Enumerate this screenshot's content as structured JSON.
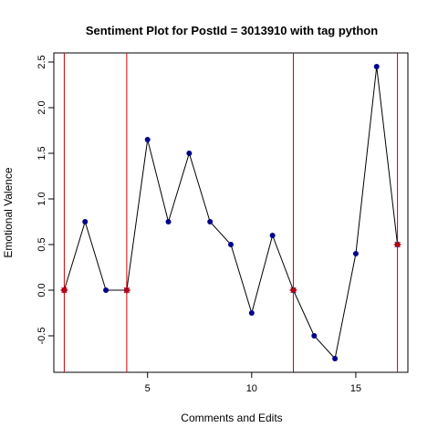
{
  "chart_data": {
    "type": "line",
    "title": "Sentiment Plot for PostId =  3013910  with tag  python",
    "xlabel": "Comments and Edits",
    "ylabel": "Emotional Valence",
    "xlim": [
      0.5,
      17.5
    ],
    "ylim": [
      -0.9,
      2.6
    ],
    "x_ticks": [
      5,
      10,
      15
    ],
    "y_ticks": [
      -0.5,
      0.0,
      0.5,
      1.0,
      1.5,
      2.0,
      2.5
    ],
    "x_tick_labels": [
      "5",
      "10",
      "15"
    ],
    "y_tick_labels": [
      "-0.5",
      "0.0",
      "0.5",
      "1.0",
      "1.5",
      "2.0",
      "2.5"
    ],
    "series": [
      {
        "x": [
          1,
          2,
          3,
          4,
          5,
          6,
          7,
          8,
          9,
          10,
          11,
          12,
          13,
          14,
          15,
          16,
          17
        ],
        "y": [
          0.0,
          0.75,
          0.0,
          0.0,
          1.65,
          0.75,
          1.5,
          0.75,
          0.5,
          -0.25,
          0.6,
          0.0,
          -0.5,
          -0.75,
          0.4,
          2.45,
          0.5
        ],
        "line_color": "#000000",
        "point_color": "#00008B"
      }
    ],
    "edit_markers": {
      "x": [
        1,
        4,
        12,
        17
      ],
      "y": [
        0.0,
        0.0,
        0.0,
        0.5
      ],
      "color": "#CC0000"
    },
    "vertical_lines": {
      "x": [
        1,
        4,
        12,
        17
      ],
      "color": "#CC0000"
    },
    "grid": false,
    "legend": "none"
  }
}
